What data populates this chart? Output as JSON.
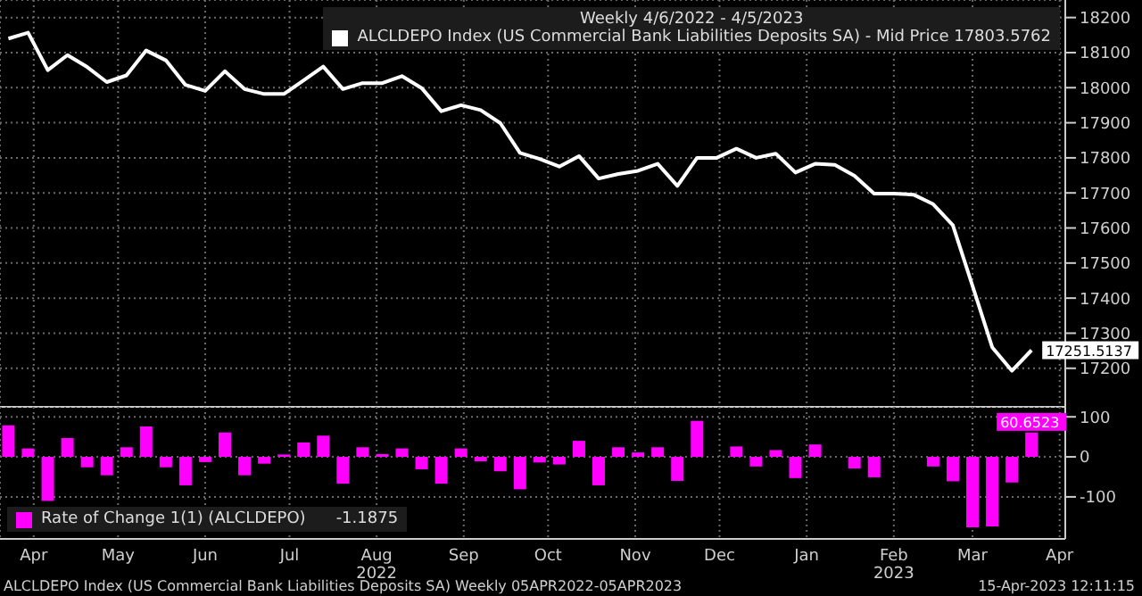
{
  "chart_data": [
    {
      "type": "line",
      "title": "Weekly 4/6/2022 - 4/5/2023",
      "x": [
        "2022-04-06",
        "2022-04-13",
        "2022-04-20",
        "2022-04-27",
        "2022-05-04",
        "2022-05-11",
        "2022-05-18",
        "2022-05-25",
        "2022-06-01",
        "2022-06-08",
        "2022-06-15",
        "2022-06-22",
        "2022-06-29",
        "2022-07-06",
        "2022-07-13",
        "2022-07-20",
        "2022-07-27",
        "2022-08-03",
        "2022-08-10",
        "2022-08-17",
        "2022-08-24",
        "2022-08-31",
        "2022-09-07",
        "2022-09-14",
        "2022-09-21",
        "2022-09-28",
        "2022-10-05",
        "2022-10-12",
        "2022-10-19",
        "2022-10-26",
        "2022-11-02",
        "2022-11-09",
        "2022-11-16",
        "2022-11-23",
        "2022-11-30",
        "2022-12-07",
        "2022-12-14",
        "2022-12-21",
        "2022-12-28",
        "2023-01-04",
        "2023-01-11",
        "2023-01-18",
        "2023-01-25",
        "2023-02-01",
        "2023-02-08",
        "2023-02-15",
        "2023-02-22",
        "2023-03-01",
        "2023-03-08",
        "2023-03-15",
        "2023-03-22",
        "2023-03-29",
        "2023-04-05"
      ],
      "series": [
        {
          "name": "ALCLDEPO Index (US Commercial Bank Liabilities Deposits SA) - Mid Price 17803.5762",
          "color": "#ffffff",
          "values": [
            18140,
            18157,
            18050,
            18093,
            18059,
            18016,
            18035,
            18106,
            18078,
            18008,
            17991,
            18047,
            17996,
            17982,
            17982,
            18021,
            18060,
            17996,
            18013,
            18013,
            18033,
            17999,
            17933,
            17950,
            17936,
            17899,
            17814,
            17797,
            17775,
            17805,
            17741,
            17754,
            17763,
            17783,
            17720,
            17800,
            17800,
            17826,
            17800,
            17812,
            17758,
            17783,
            17780,
            17749,
            17698,
            17698,
            17695,
            17668,
            17608,
            17435,
            17260,
            17193,
            17251.5137
          ],
          "value_labels": [
            null,
            null,
            null,
            null,
            null,
            null,
            null,
            null,
            null,
            null,
            null,
            null,
            null,
            null,
            null,
            null,
            null,
            null,
            null,
            null,
            null,
            null,
            null,
            null,
            null,
            null,
            null,
            null,
            null,
            null,
            null,
            null,
            null,
            null,
            null,
            null,
            null,
            null,
            null,
            null,
            null,
            null,
            null,
            null,
            null,
            null,
            null,
            null,
            null,
            null,
            null,
            null,
            "17251.5137"
          ]
        }
      ],
      "xlim": [
        "2022-04-03",
        "2023-04-17"
      ],
      "xticks": [
        {
          "value": "2022-04-15",
          "label": null
        },
        {
          "value": "2022-05-15",
          "label": null
        },
        {
          "value": "2022-06-15",
          "label": null
        },
        {
          "value": "2022-07-15",
          "label": null
        },
        {
          "value": "2022-08-15",
          "label": null
        },
        {
          "value": "2022-09-15",
          "label": null
        },
        {
          "value": "2022-10-15",
          "label": null
        },
        {
          "value": "2022-11-15",
          "label": null
        },
        {
          "value": "2022-12-15",
          "label": null
        },
        {
          "value": "2023-01-15",
          "label": null
        },
        {
          "value": "2023-02-15",
          "label": null
        },
        {
          "value": "2023-03-15",
          "label": null
        },
        {
          "value": "2023-04-15",
          "label": null
        }
      ],
      "ylim": [
        17090,
        18250
      ],
      "yticks": [
        17200,
        17300,
        17400,
        17500,
        17600,
        17700,
        17800,
        17900,
        18000,
        18100,
        18200
      ],
      "grid": true,
      "legend": "top right",
      "tick_labels": "y"
    },
    {
      "type": "bar",
      "x": [
        "2022-04-06",
        "2022-04-13",
        "2022-04-20",
        "2022-04-27",
        "2022-05-04",
        "2022-05-11",
        "2022-05-18",
        "2022-05-25",
        "2022-06-01",
        "2022-06-08",
        "2022-06-15",
        "2022-06-22",
        "2022-06-29",
        "2022-07-06",
        "2022-07-13",
        "2022-07-20",
        "2022-07-27",
        "2022-08-03",
        "2022-08-10",
        "2022-08-17",
        "2022-08-24",
        "2022-08-31",
        "2022-09-07",
        "2022-09-14",
        "2022-09-21",
        "2022-09-28",
        "2022-10-05",
        "2022-10-12",
        "2022-10-19",
        "2022-10-26",
        "2022-11-02",
        "2022-11-09",
        "2022-11-16",
        "2022-11-23",
        "2022-11-30",
        "2022-12-07",
        "2022-12-14",
        "2022-12-21",
        "2022-12-28",
        "2023-01-04",
        "2023-01-11",
        "2023-01-18",
        "2023-01-25",
        "2023-02-01",
        "2023-02-08",
        "2023-02-15",
        "2023-02-22",
        "2023-03-01",
        "2023-03-08",
        "2023-03-15",
        "2023-03-22",
        "2023-03-29",
        "2023-04-05"
      ],
      "series": [
        {
          "name": "Rate of Change 1(1) (ALCLDEPO)",
          "color": "#ff00ff",
          "values": [
            79,
            21,
            -110,
            47,
            -26,
            -46,
            24,
            76,
            -26,
            -71,
            -13,
            61,
            -46,
            -17,
            6,
            36,
            53,
            -67,
            24,
            7,
            21,
            -31,
            -67,
            21,
            -11,
            -36,
            -81,
            -14,
            -19,
            40,
            -71,
            24,
            11,
            24,
            -60,
            90,
            0,
            26,
            -24,
            17,
            -53,
            31,
            0,
            -29,
            -51,
            0,
            0,
            -24,
            -61,
            -176,
            -174,
            -64,
            60.6523
          ],
          "value_labels": [
            null,
            null,
            null,
            null,
            null,
            null,
            null,
            null,
            null,
            null,
            null,
            null,
            null,
            null,
            null,
            null,
            null,
            null,
            null,
            null,
            null,
            null,
            null,
            null,
            null,
            null,
            null,
            null,
            null,
            null,
            null,
            null,
            null,
            null,
            null,
            null,
            null,
            null,
            null,
            null,
            null,
            null,
            null,
            null,
            null,
            null,
            null,
            null,
            null,
            null,
            null,
            null,
            "60.6523"
          ]
        }
      ],
      "xlim": [
        "2022-04-03",
        "2023-04-17"
      ],
      "xticks": [
        {
          "value": "2022-04-15",
          "label": "Apr"
        },
        {
          "value": "2022-05-15",
          "label": "May"
        },
        {
          "value": "2022-06-15",
          "label": "Jun"
        },
        {
          "value": "2022-07-15",
          "label": "Jul"
        },
        {
          "value": "2022-08-15",
          "label": "Aug\n2022"
        },
        {
          "value": "2022-09-15",
          "label": "Sep"
        },
        {
          "value": "2022-10-15",
          "label": "Oct"
        },
        {
          "value": "2022-11-15",
          "label": "Nov"
        },
        {
          "value": "2022-12-15",
          "label": "Dec"
        },
        {
          "value": "2023-01-15",
          "label": "Jan"
        },
        {
          "value": "2023-02-15",
          "label": "Feb\n2023"
        },
        {
          "value": "2023-03-15",
          "label": "Mar"
        },
        {
          "value": "2023-04-15",
          "label": "Apr"
        }
      ],
      "ylim": [
        -205,
        125
      ],
      "yticks": [
        -100,
        0,
        100
      ],
      "grid": true,
      "legend": "bottom left",
      "annotations": [
        "-1.1875",
        "ALCLDEPO Index (US Commercial Bank Liabilities Deposits SA)  Weekly 05APR2022-05APR2023",
        "15-Apr-2023 12:11:15"
      ]
    }
  ]
}
